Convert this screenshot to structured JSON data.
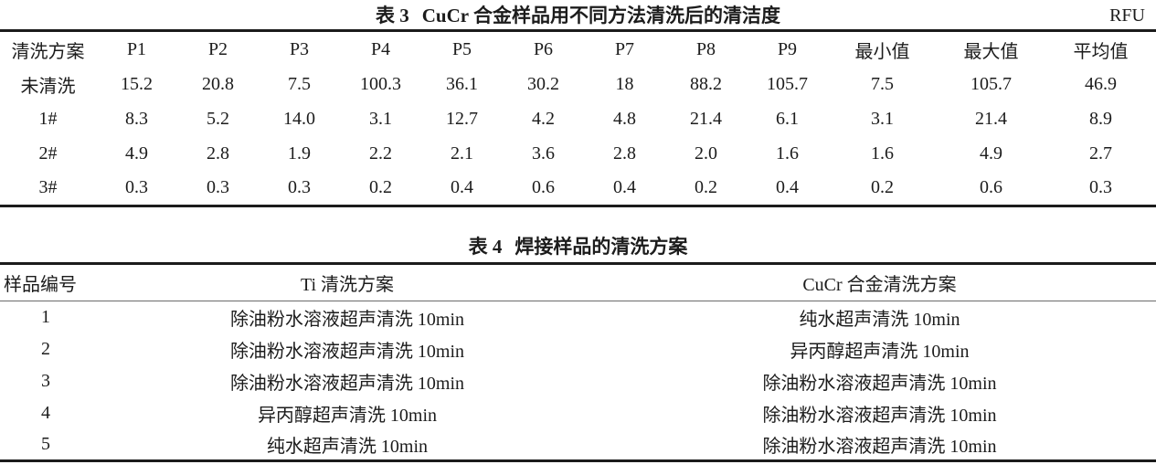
{
  "page": {
    "background": "#ffffff",
    "text_color": "#1c1c1c",
    "rule_color": "#1b1b1b"
  },
  "table3": {
    "title_prefix": "表 3",
    "title": "CuCr 合金样品用不同方法清洗后的清洁度",
    "unit": "RFU",
    "columns": [
      "清洗方案",
      "P1",
      "P2",
      "P3",
      "P4",
      "P5",
      "P6",
      "P7",
      "P8",
      "P9",
      "最小值",
      "最大值",
      "平均值"
    ],
    "rows": [
      [
        "未清洗",
        "15.2",
        "20.8",
        "7.5",
        "100.3",
        "36.1",
        "30.2",
        "18",
        "88.2",
        "105.7",
        "7.5",
        "105.7",
        "46.9"
      ],
      [
        "1#",
        "8.3",
        "5.2",
        "14.0",
        "3.1",
        "12.7",
        "4.2",
        "4.8",
        "21.4",
        "6.1",
        "3.1",
        "21.4",
        "8.9"
      ],
      [
        "2#",
        "4.9",
        "2.8",
        "1.9",
        "2.2",
        "2.1",
        "3.6",
        "2.8",
        "2.0",
        "1.6",
        "1.6",
        "4.9",
        "2.7"
      ],
      [
        "3#",
        "0.3",
        "0.3",
        "0.3",
        "0.2",
        "0.4",
        "0.6",
        "0.4",
        "0.2",
        "0.4",
        "0.2",
        "0.6",
        "0.3"
      ]
    ]
  },
  "table4": {
    "title_prefix": "表 4",
    "title": "焊接样品的清洗方案",
    "columns": [
      "样品编号",
      "Ti 清洗方案",
      "CuCr 合金清洗方案"
    ],
    "rows": [
      [
        "1",
        "除油粉水溶液超声清洗 10min",
        "纯水超声清洗 10min"
      ],
      [
        "2",
        "除油粉水溶液超声清洗 10min",
        "异丙醇超声清洗 10min"
      ],
      [
        "3",
        "除油粉水溶液超声清洗 10min",
        "除油粉水溶液超声清洗 10min"
      ],
      [
        "4",
        "异丙醇超声清洗 10min",
        "除油粉水溶液超声清洗 10min"
      ],
      [
        "5",
        "纯水超声清洗 10min",
        "除油粉水溶液超声清洗 10min"
      ]
    ]
  }
}
